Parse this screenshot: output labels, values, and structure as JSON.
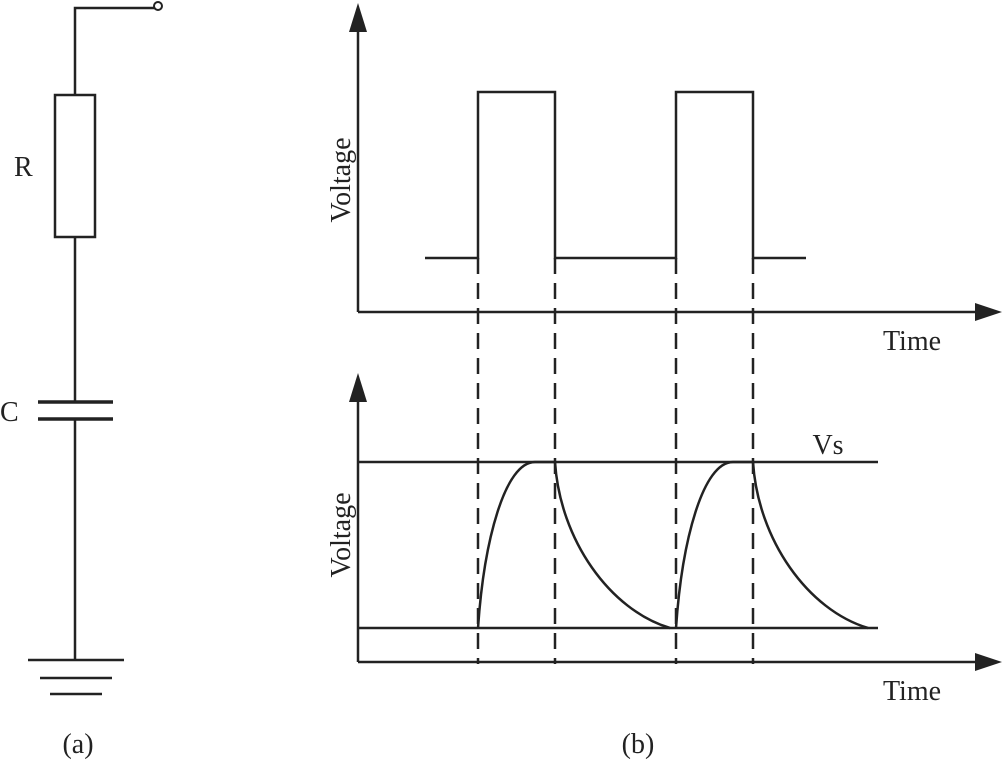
{
  "circuit": {
    "resistor_label": "R",
    "capacitor_label": "C",
    "caption": "(a)"
  },
  "waveforms": {
    "caption": "(b)",
    "input_graph": {
      "y_label": "Voltage",
      "x_label": "Time"
    },
    "output_graph": {
      "y_label": "Voltage",
      "x_label": "Time",
      "level_label": "Vs"
    }
  }
}
